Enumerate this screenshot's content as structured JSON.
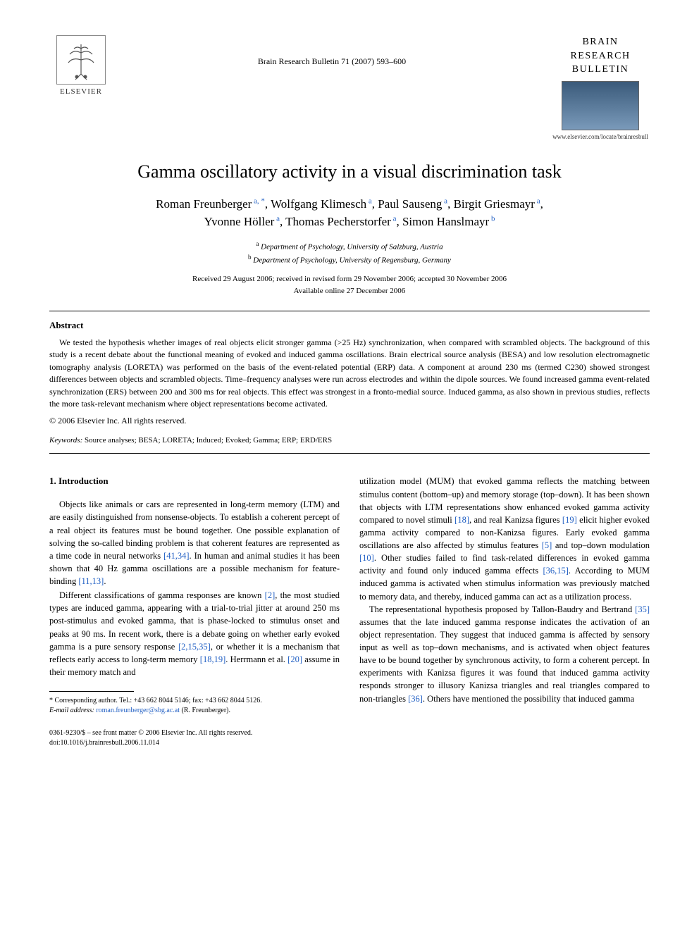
{
  "header": {
    "publisher_name": "ELSEVIER",
    "citation": "Brain Research Bulletin 71 (2007) 593–600",
    "journal_name_line1": "BRAIN",
    "journal_name_line2": "RESEARCH",
    "journal_name_line3": "BULLETIN",
    "journal_url": "www.elsevier.com/locate/brainresbull"
  },
  "title": "Gamma oscillatory activity in a visual discrimination task",
  "authors_line1_parts": [
    {
      "name": "Roman Freunberger",
      "sup": "a,",
      "star": "*"
    },
    {
      "name": ", Wolfgang Klimesch",
      "sup": "a"
    },
    {
      "name": ", Paul Sauseng",
      "sup": "a"
    },
    {
      "name": ", Birgit Griesmayr",
      "sup": "a"
    },
    {
      "name": ","
    }
  ],
  "authors_line2_parts": [
    {
      "name": "Yvonne Höller",
      "sup": "a"
    },
    {
      "name": ", Thomas Pecherstorfer",
      "sup": "a"
    },
    {
      "name": ", Simon Hanslmayr",
      "sup": "b"
    }
  ],
  "affiliations": [
    {
      "sup": "a",
      "text": " Department of Psychology, University of Salzburg, Austria"
    },
    {
      "sup": "b",
      "text": " Department of Psychology, University of Regensburg, Germany"
    }
  ],
  "dates_line1": "Received 29 August 2006; received in revised form 29 November 2006; accepted 30 November 2006",
  "dates_line2": "Available online 27 December 2006",
  "abstract": {
    "heading": "Abstract",
    "body": "We tested the hypothesis whether images of real objects elicit stronger gamma (>25 Hz) synchronization, when compared with scrambled objects. The background of this study is a recent debate about the functional meaning of evoked and induced gamma oscillations. Brain electrical source analysis (BESA) and low resolution electromagnetic tomography analysis (LORETA) was performed on the basis of the event-related potential (ERP) data. A component at around 230 ms (termed C230) showed strongest differences between objects and scrambled objects. Time–frequency analyses were run across electrodes and within the dipole sources. We found increased gamma event-related synchronization (ERS) between 200 and 300 ms for real objects. This effect was strongest in a fronto-medial source. Induced gamma, as also shown in previous studies, reflects the more task-relevant mechanism where object representations become activated.",
    "copyright": "© 2006 Elsevier Inc. All rights reserved."
  },
  "keywords": {
    "label": "Keywords:",
    "text": "  Source analyses; BESA; LORETA; Induced; Evoked; Gamma; ERP; ERD/ERS"
  },
  "section1": {
    "heading": "1.  Introduction",
    "para1_pre": "Objects like animals or cars are represented in long-term memory (LTM) and are easily distinguished from nonsense-objects. To establish a coherent percept of a real object its features must be bound together. One possible explanation of solving the so-called binding problem is that coherent features are represented as a time code in neural networks ",
    "para1_ref1": "[41,34]",
    "para1_mid": ". In human and animal studies it has been shown that 40 Hz gamma oscillations are a possible mechanism for feature-binding ",
    "para1_ref2": "[11,13]",
    "para1_end": ".",
    "para2_pre": "Different classifications of gamma responses are known ",
    "para2_ref1": "[2]",
    "para2_mid1": ", the most studied types are induced gamma, appearing with a trial-to-trial jitter at around 250 ms post-stimulus and evoked gamma, that is phase-locked to stimulus onset and peaks at 90 ms. In recent work, there is a debate going on whether early evoked gamma is a pure sensory response ",
    "para2_ref2": "[2,15,35]",
    "para2_mid2": ", or whether it is a mechanism that reflects early access to long-term memory ",
    "para2_ref3": "[18,19]",
    "para2_mid3": ". Herrmann et al. ",
    "para2_ref4": "[20]",
    "para2_end": " assume in their memory match and",
    "col2_p1_pre": "utilization model (MUM) that evoked gamma reflects the matching between stimulus content (bottom–up) and memory storage (top–down). It has been shown that objects with LTM representations show enhanced evoked gamma activity compared to novel stimuli ",
    "col2_p1_ref1": "[18]",
    "col2_p1_mid1": ", and real Kanizsa figures ",
    "col2_p1_ref2": "[19]",
    "col2_p1_mid2": " elicit higher evoked gamma activity compared to non-Kanizsa figures. Early evoked gamma oscillations are also affected by stimulus features ",
    "col2_p1_ref3": "[5]",
    "col2_p1_mid3": " and top–down modulation ",
    "col2_p1_ref4": "[10]",
    "col2_p1_mid4": ". Other studies failed to find task-related differences in evoked gamma activity and found only induced gamma effects ",
    "col2_p1_ref5": "[36,15]",
    "col2_p1_end": ". According to MUM induced gamma is activated when stimulus information was previously matched to memory data, and thereby, induced gamma can act as a utilization process.",
    "col2_p2_pre": "The representational hypothesis proposed by Tallon-Baudry and Bertrand ",
    "col2_p2_ref1": "[35]",
    "col2_p2_mid1": " assumes that the late induced gamma response indicates the activation of an object representation. They suggest that induced gamma is affected by sensory input as well as top–down mechanisms, and is activated when object features have to be bound together by synchronous activity, to form a coherent percept. In experiments with Kanizsa figures it was found that induced gamma activity responds stronger to illusory Kanizsa triangles and real triangles compared to non-triangles ",
    "col2_p2_ref2": "[36]",
    "col2_p2_end": ". Others have mentioned the possibility that induced gamma"
  },
  "footnote": {
    "corr_label": "* Corresponding author. Tel.: +43 662 8044 5146; fax: +43 662 8044 5126.",
    "email_label": "E-mail address:",
    "email": " roman.freunberger@sbg.ac.at",
    "email_suffix": " (R. Freunberger)."
  },
  "footer": {
    "line1": "0361-9230/$ – see front matter © 2006 Elsevier Inc. All rights reserved.",
    "line2": "doi:10.1016/j.brainresbull.2006.11.014"
  }
}
